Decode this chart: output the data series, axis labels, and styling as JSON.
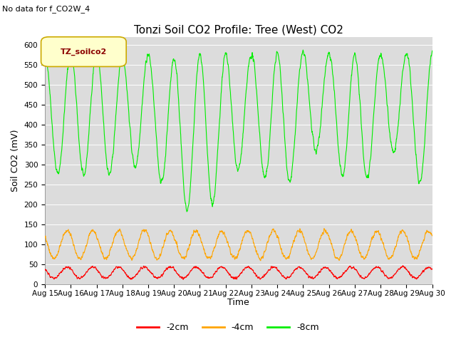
{
  "title": "Tonzi Soil CO2 Profile: Tree (West) CO2",
  "no_data_text": "No data for f_CO2W_4",
  "ylabel": "Soil CO2 (mV)",
  "xlabel": "Time",
  "legend_box_label": "TZ_soilco2",
  "ylim": [
    0,
    620
  ],
  "yticks": [
    0,
    50,
    100,
    150,
    200,
    250,
    300,
    350,
    400,
    450,
    500,
    550,
    600
  ],
  "x_labels": [
    "Aug 15",
    "Aug 16",
    "Aug 17",
    "Aug 18",
    "Aug 19",
    "Aug 20",
    "Aug 21",
    "Aug 22",
    "Aug 23",
    "Aug 24",
    "Aug 25",
    "Aug 26",
    "Aug 27",
    "Aug 28",
    "Aug 29",
    "Aug 30"
  ],
  "color_red": "#ff0000",
  "color_orange": "#ffa500",
  "color_green": "#00ee00",
  "label_2cm": "-2cm",
  "label_4cm": "-4cm",
  "label_8cm": "-8cm",
  "bg_plot": "#dcdcdc",
  "bg_fig": "#ffffff",
  "legend_face": "#ffffcc",
  "legend_edge": "#ccaa00",
  "title_fs": 11,
  "axis_label_fs": 9,
  "tick_fs": 7.5,
  "green_peaks": [
    580,
    580,
    580,
    570,
    575,
    565,
    575,
    575,
    575,
    580,
    580,
    580,
    575,
    575,
    580,
    580,
    580,
    575,
    575,
    580,
    575,
    575,
    565,
    570,
    575,
    575,
    580,
    575,
    575,
    580
  ],
  "green_troughs": [
    280,
    275,
    270,
    280,
    310,
    205,
    165,
    240,
    335,
    200,
    320,
    345,
    200,
    340,
    320,
    195,
    270,
    330,
    275,
    330,
    335,
    280,
    270,
    330,
    270,
    280,
    295,
    285,
    290,
    285
  ]
}
